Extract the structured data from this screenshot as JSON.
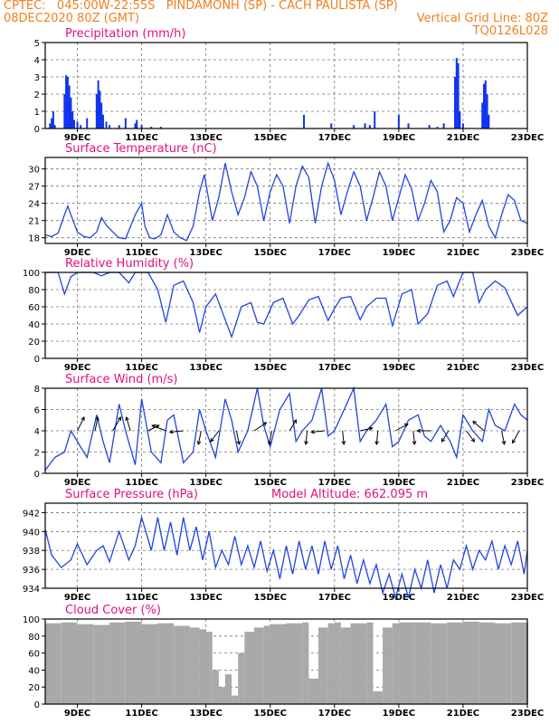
{
  "header": {
    "line1_left": "CPTEC:   045:00W-22:55S   PINDAMONH (SP) - CACH PAULISTA (SP)",
    "line2_left": "08DEC2020 80Z (GMT)",
    "line2_right": "Vertical Grid Line: 80Z",
    "line3_right": "TQ0126L028"
  },
  "x_ticks": [
    "9DEC",
    "11DEC",
    "13DEC",
    "15DEC",
    "17DEC",
    "19DEC",
    "21DEC",
    "23DEC"
  ],
  "colors": {
    "header": "#f07f1e",
    "title": "#e0107f",
    "line": "#2244dd",
    "bar": "#1133ee",
    "cloud": "#a9a9a9",
    "arrow": "#000000"
  },
  "chart_data": [
    {
      "id": "precip",
      "type": "bar",
      "title": "Precipitation (mm/h)",
      "ylim": [
        0,
        5
      ],
      "yticks": [
        0,
        1,
        2,
        3,
        4,
        5
      ],
      "xlim_days": [
        8,
        23
      ],
      "x": [
        8.15,
        8.2,
        8.25,
        8.3,
        8.6,
        8.65,
        8.7,
        8.75,
        8.8,
        8.85,
        8.9,
        9.0,
        9.1,
        9.3,
        9.6,
        9.65,
        9.7,
        9.75,
        9.8,
        9.9,
        10.0,
        10.3,
        10.5,
        10.8,
        10.85,
        11.0,
        11.3,
        11.6,
        16.05,
        16.9,
        17.6,
        17.95,
        18.1,
        18.25,
        19.0,
        19.3,
        19.95,
        20.2,
        20.4,
        20.75,
        20.8,
        20.85,
        20.9,
        21.0,
        21.6,
        21.65,
        21.7,
        21.75,
        21.8
      ],
      "values": [
        0.3,
        0.6,
        1.0,
        0.2,
        2.0,
        3.1,
        3.0,
        2.5,
        1.8,
        1.0,
        0.5,
        0.4,
        0.2,
        0.6,
        2.0,
        2.8,
        2.2,
        1.5,
        0.8,
        0.4,
        0.2,
        0.2,
        0.6,
        0.3,
        0.5,
        0.2,
        0.1,
        0.1,
        0.8,
        0.3,
        0.2,
        0.3,
        0.2,
        1.0,
        0.8,
        0.3,
        0.2,
        0.1,
        0.3,
        3.0,
        4.1,
        3.8,
        1.0,
        0.3,
        1.5,
        2.6,
        2.8,
        2.0,
        0.8
      ]
    },
    {
      "id": "temp",
      "type": "line",
      "title": "Surface Temperature (nC)",
      "ylim": [
        17,
        32
      ],
      "yticks": [
        18,
        21,
        24,
        27,
        30
      ],
      "xlim_days": [
        8,
        23
      ],
      "x": [
        8.0,
        8.2,
        8.4,
        8.6,
        8.7,
        8.8,
        9.0,
        9.2,
        9.4,
        9.6,
        9.75,
        9.9,
        10.1,
        10.3,
        10.5,
        10.8,
        11.0,
        11.1,
        11.25,
        11.4,
        11.6,
        11.8,
        12.0,
        12.2,
        12.4,
        12.6,
        12.8,
        12.95,
        13.2,
        13.4,
        13.6,
        13.8,
        14.0,
        14.2,
        14.4,
        14.6,
        14.8,
        15.0,
        15.2,
        15.4,
        15.6,
        15.8,
        16.0,
        16.2,
        16.4,
        16.6,
        16.8,
        17.0,
        17.2,
        17.4,
        17.6,
        17.8,
        18.0,
        18.2,
        18.4,
        18.6,
        18.8,
        19.0,
        19.2,
        19.4,
        19.6,
        19.8,
        20.0,
        20.2,
        20.4,
        20.6,
        20.8,
        21.0,
        21.2,
        21.4,
        21.6,
        21.8,
        22.0,
        22.2,
        22.4,
        22.6,
        22.8,
        23.0
      ],
      "values": [
        18.5,
        18.2,
        18.8,
        22.0,
        23.5,
        22.0,
        19.0,
        18.2,
        18.0,
        19.0,
        21.5,
        20.2,
        19.0,
        18.0,
        17.8,
        22.0,
        24.0,
        20.0,
        18.0,
        17.8,
        18.5,
        22.0,
        19.0,
        18.0,
        17.5,
        20.0,
        26.0,
        29.0,
        21.0,
        25.0,
        31.0,
        26.0,
        22.0,
        25.0,
        29.5,
        27.0,
        21.0,
        26.0,
        29.0,
        27.0,
        20.5,
        27.0,
        30.5,
        28.5,
        20.5,
        27.0,
        31.0,
        28.0,
        22.0,
        26.0,
        29.5,
        27.0,
        21.0,
        25.0,
        29.5,
        27.0,
        21.0,
        25.0,
        29.0,
        26.5,
        21.0,
        24.0,
        28.0,
        26.0,
        19.0,
        21.0,
        25.0,
        24.0,
        19.0,
        22.0,
        24.5,
        20.0,
        18.0,
        22.0,
        25.5,
        24.5,
        21.0,
        20.5
      ]
    },
    {
      "id": "rh",
      "type": "line",
      "title": "Relative Humidity (%)",
      "ylim": [
        0,
        100
      ],
      "yticks": [
        0,
        20,
        40,
        60,
        80,
        100
      ],
      "xlim_days": [
        8,
        23
      ],
      "x": [
        8.0,
        8.4,
        8.6,
        8.8,
        9.0,
        9.5,
        9.75,
        10.0,
        10.3,
        10.6,
        10.8,
        11.2,
        11.5,
        11.75,
        12.0,
        12.3,
        12.6,
        12.8,
        13.0,
        13.3,
        13.6,
        13.8,
        14.1,
        14.4,
        14.6,
        14.8,
        15.1,
        15.4,
        15.7,
        15.9,
        16.2,
        16.5,
        16.8,
        17.0,
        17.2,
        17.5,
        17.8,
        18.0,
        18.3,
        18.6,
        18.8,
        19.1,
        19.4,
        19.6,
        19.9,
        20.2,
        20.5,
        20.7,
        21.0,
        21.3,
        21.5,
        21.7,
        22.0,
        22.3,
        22.7,
        23.0
      ],
      "values": [
        100,
        100,
        75,
        95,
        100,
        100,
        96,
        100,
        100,
        88,
        100,
        100,
        80,
        42,
        85,
        90,
        65,
        30,
        60,
        75,
        45,
        25,
        60,
        65,
        42,
        40,
        65,
        70,
        40,
        50,
        68,
        72,
        44,
        58,
        70,
        72,
        45,
        60,
        70,
        70,
        38,
        75,
        80,
        40,
        52,
        85,
        90,
        72,
        100,
        100,
        65,
        80,
        90,
        82,
        50,
        60
      ]
    },
    {
      "id": "wind",
      "type": "line",
      "title": "Surface Wind (m/s)",
      "ylim": [
        0,
        8
      ],
      "yticks": [
        0,
        2,
        4,
        6,
        8
      ],
      "xlim_days": [
        8,
        23
      ],
      "x": [
        8.0,
        8.3,
        8.6,
        8.8,
        9.0,
        9.3,
        9.6,
        9.8,
        10.0,
        10.3,
        10.5,
        10.8,
        11.0,
        11.3,
        11.6,
        11.8,
        12.0,
        12.3,
        12.6,
        12.8,
        13.0,
        13.3,
        13.6,
        13.8,
        14.0,
        14.3,
        14.6,
        14.8,
        15.0,
        15.3,
        15.6,
        15.8,
        16.0,
        16.3,
        16.6,
        16.8,
        17.0,
        17.3,
        17.6,
        17.8,
        18.0,
        18.3,
        18.6,
        18.8,
        19.0,
        19.3,
        19.6,
        19.8,
        20.0,
        20.3,
        20.6,
        20.8,
        21.0,
        21.3,
        21.6,
        21.8,
        22.0,
        22.3,
        22.6,
        22.8,
        23.0
      ],
      "values": [
        0.3,
        1.5,
        2.0,
        4.0,
        3.0,
        1.5,
        5.5,
        3.0,
        1.0,
        6.5,
        4.0,
        0.8,
        7.0,
        2.0,
        1.0,
        5.0,
        5.5,
        1.0,
        2.0,
        6.0,
        4.0,
        1.5,
        7.0,
        5.0,
        2.0,
        4.0,
        8.0,
        4.5,
        2.5,
        6.0,
        7.5,
        3.0,
        4.0,
        5.0,
        8.0,
        3.5,
        4.0,
        6.0,
        8.0,
        3.0,
        4.0,
        5.0,
        6.5,
        2.5,
        3.0,
        5.0,
        5.5,
        3.5,
        3.0,
        4.5,
        3.0,
        1.5,
        5.5,
        4.0,
        3.0,
        6.0,
        4.5,
        4.0,
        6.5,
        5.5,
        5.0
      ]
    },
    {
      "id": "pressure",
      "type": "line",
      "title": "Surface Pressure (hPa)",
      "annotation": "Model Altitude: 662.095 m",
      "ylim": [
        934,
        943
      ],
      "yticks": [
        934,
        936,
        938,
        940,
        942
      ],
      "xlim_days": [
        8,
        23
      ],
      "x": [
        8.0,
        8.2,
        8.5,
        8.8,
        9.0,
        9.3,
        9.6,
        9.8,
        10.0,
        10.3,
        10.6,
        10.8,
        11.0,
        11.3,
        11.5,
        11.7,
        11.9,
        12.1,
        12.3,
        12.5,
        12.7,
        12.9,
        13.1,
        13.3,
        13.5,
        13.7,
        13.9,
        14.1,
        14.3,
        14.5,
        14.7,
        14.9,
        15.1,
        15.3,
        15.5,
        15.7,
        15.9,
        16.1,
        16.3,
        16.5,
        16.7,
        16.9,
        17.1,
        17.3,
        17.5,
        17.7,
        17.9,
        18.1,
        18.3,
        18.5,
        18.7,
        18.9,
        19.1,
        19.3,
        19.5,
        19.7,
        19.9,
        20.1,
        20.3,
        20.5,
        20.7,
        20.9,
        21.1,
        21.3,
        21.5,
        21.7,
        21.9,
        22.1,
        22.3,
        22.5,
        22.7,
        22.9,
        23.0
      ],
      "values": [
        940.2,
        937.5,
        936.2,
        937.0,
        938.7,
        936.5,
        938.0,
        938.5,
        936.8,
        940.0,
        937.0,
        938.5,
        941.5,
        938.0,
        941.5,
        938.0,
        941.0,
        937.5,
        941.5,
        938.0,
        940.5,
        937.0,
        940.0,
        936.2,
        938.0,
        936.5,
        939.5,
        936.5,
        938.5,
        936.2,
        939.0,
        935.8,
        938.0,
        935.0,
        938.5,
        935.5,
        939.0,
        936.0,
        938.5,
        935.5,
        939.0,
        936.0,
        938.5,
        935.0,
        937.5,
        934.5,
        937.0,
        934.5,
        936.5,
        933.5,
        935.5,
        933.0,
        935.5,
        933.0,
        936.0,
        934.0,
        937.0,
        933.5,
        936.5,
        934.0,
        937.0,
        936.0,
        938.5,
        936.0,
        938.0,
        937.0,
        939.0,
        936.0,
        938.5,
        936.5,
        939.0,
        935.5,
        938.0
      ]
    },
    {
      "id": "cloud",
      "type": "bar",
      "title": "Cloud Cover (%)",
      "ylim": [
        0,
        100
      ],
      "yticks": [
        0,
        20,
        40,
        60,
        80,
        100
      ],
      "xlim_days": [
        8,
        23
      ],
      "x": [
        8.0,
        8.5,
        9.0,
        9.5,
        10.0,
        10.5,
        11.0,
        11.5,
        12.0,
        12.5,
        12.8,
        13.0,
        13.2,
        13.4,
        13.6,
        13.8,
        14.0,
        14.2,
        14.5,
        14.8,
        15.0,
        15.5,
        16.0,
        16.2,
        16.5,
        16.8,
        17.0,
        17.2,
        17.5,
        18.0,
        18.2,
        18.5,
        18.8,
        19.0,
        19.5,
        20.0,
        20.5,
        21.0,
        21.5,
        22.0,
        22.5,
        23.0
      ],
      "values": [
        95,
        96,
        94,
        93,
        96,
        97,
        94,
        95,
        92,
        90,
        88,
        85,
        40,
        20,
        35,
        10,
        60,
        85,
        90,
        92,
        94,
        95,
        96,
        30,
        90,
        95,
        96,
        90,
        95,
        96,
        15,
        90,
        95,
        96,
        96,
        95,
        96,
        97,
        96,
        95,
        96,
        95
      ]
    }
  ]
}
